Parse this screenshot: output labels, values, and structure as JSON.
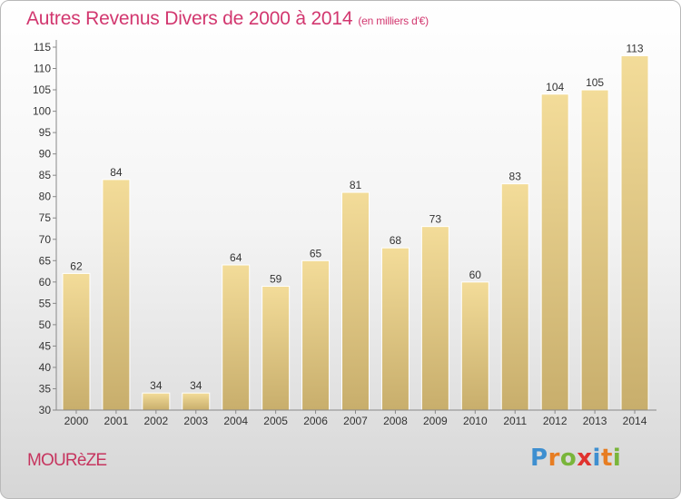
{
  "header": {
    "title": "Autres Revenus Divers de 2000 à 2014",
    "unit": "(en milliers d'€)"
  },
  "footer": {
    "place": "MOURèZE",
    "brand": {
      "letters": [
        "P",
        "r",
        "o",
        "x",
        "i",
        "t",
        "i"
      ],
      "colors": [
        "#3e8fd0",
        "#e77d22",
        "#79b53a",
        "#e0322e",
        "#3e8fd0",
        "#e77d22",
        "#79b53a"
      ]
    }
  },
  "chart_data": {
    "type": "bar",
    "categories": [
      "2000",
      "2001",
      "2002",
      "2003",
      "2004",
      "2005",
      "2006",
      "2007",
      "2008",
      "2009",
      "2010",
      "2011",
      "2012",
      "2013",
      "2014"
    ],
    "values": [
      62,
      84,
      34,
      34,
      64,
      59,
      65,
      81,
      68,
      73,
      60,
      83,
      104,
      105,
      113
    ],
    "value_labels": [
      "62",
      "84",
      "34",
      "34",
      "64",
      "59",
      "65",
      "81",
      "68",
      "73",
      "60",
      "83",
      "104",
      "105",
      "113"
    ],
    "yticks": [
      "30",
      "35",
      "40",
      "45",
      "50",
      "55",
      "60",
      "65",
      "70",
      "75",
      "80",
      "85",
      "90",
      "95",
      "100",
      "105",
      "110",
      "115"
    ],
    "ylim": [
      30,
      115
    ],
    "grid": false,
    "colors": {
      "bar_top": "#f3dc99",
      "bar_bottom": "#c8ae6c",
      "bar_edge": "#ffffff",
      "axis": "#888888"
    }
  }
}
